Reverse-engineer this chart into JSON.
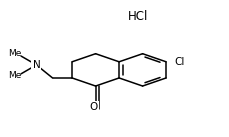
{
  "background_color": "#ffffff",
  "hcl_label": "HCl",
  "cl_label": "Cl",
  "o_label": "O",
  "n_label": "N",
  "line_color": "#000000",
  "line_width": 1.1,
  "hcl_fontsize": 8.5,
  "cl_fontsize": 7.5,
  "o_fontsize": 7.5,
  "n_fontsize": 7.5,
  "me_fontsize": 6.5
}
